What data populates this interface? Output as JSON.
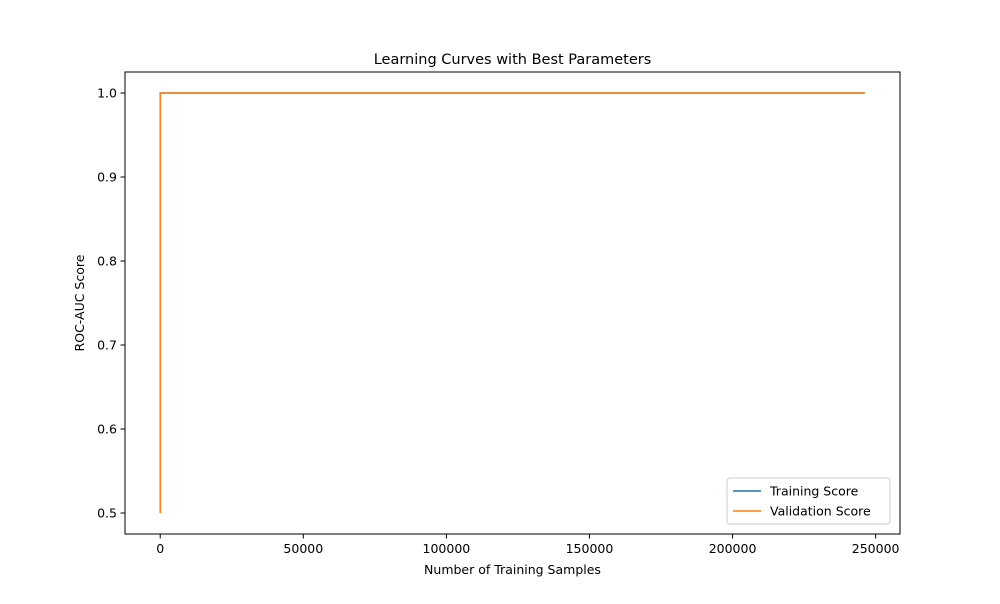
{
  "chart_data": {
    "type": "line",
    "title": "Learning Curves with Best Parameters",
    "xlabel": "Number of Training Samples",
    "ylabel": "ROC-AUC Score",
    "xlim": [
      -12308,
      258508
    ],
    "ylim": [
      0.475,
      1.025
    ],
    "xticks": [
      0,
      50000,
      100000,
      150000,
      200000,
      250000
    ],
    "xtick_labels": [
      "0",
      "50000",
      "100000",
      "150000",
      "200000",
      "250000"
    ],
    "yticks": [
      0.5,
      0.6,
      0.7,
      0.8,
      0.9,
      1.0
    ],
    "ytick_labels": [
      "0.5",
      "0.6",
      "0.7",
      "0.8",
      "0.9",
      "1.0"
    ],
    "grid": false,
    "legend_position": "lower right",
    "series": [
      {
        "name": "Training Score",
        "color": "#1f77b4",
        "x": [
          2,
          24620,
          49240,
          73860,
          98480,
          123100,
          147720,
          172340,
          196960,
          221580,
          246200
        ],
        "y": [
          1.0,
          1.0,
          1.0,
          1.0,
          1.0,
          1.0,
          1.0,
          1.0,
          1.0,
          1.0,
          1.0
        ]
      },
      {
        "name": "Validation Score",
        "color": "#ff7f0e",
        "x": [
          2,
          2,
          24620,
          49240,
          73860,
          98480,
          123100,
          147720,
          172340,
          196960,
          221580,
          246200
        ],
        "y": [
          0.5,
          1.0,
          1.0,
          1.0,
          1.0,
          1.0,
          1.0,
          1.0,
          1.0,
          1.0,
          1.0,
          1.0
        ]
      }
    ]
  }
}
